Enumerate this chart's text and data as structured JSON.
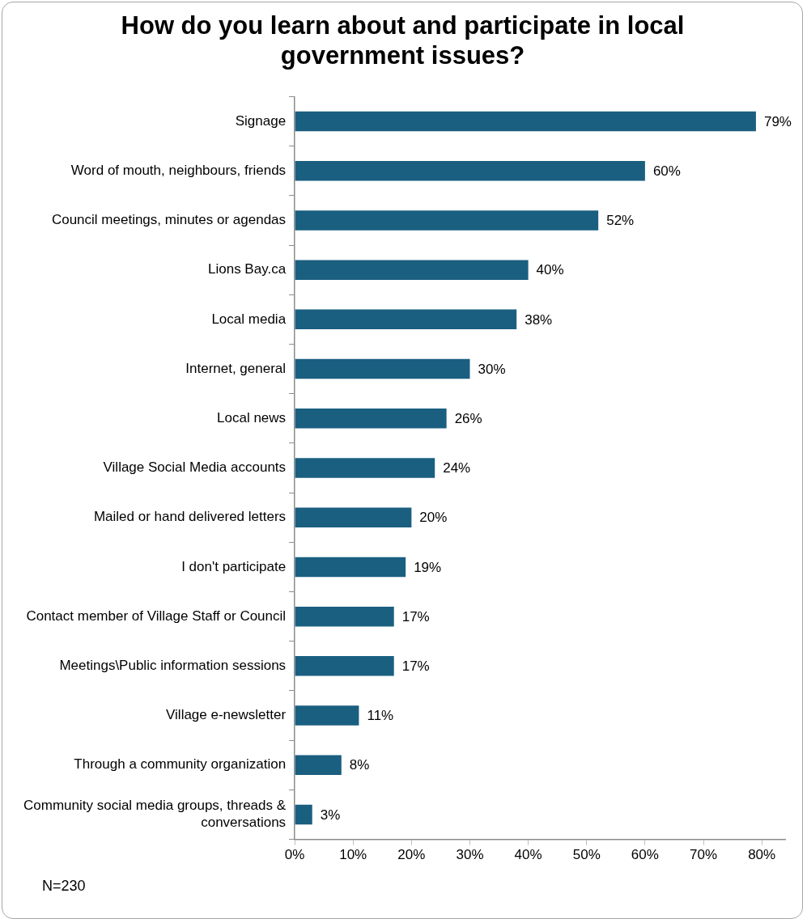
{
  "chart_data": {
    "type": "bar",
    "orientation": "horizontal",
    "title": "How do you learn about and participate in local government issues?",
    "categories": [
      "Signage",
      "Word of mouth, neighbours, friends",
      "Council meetings, minutes or agendas",
      "Lions Bay.ca",
      "Local media",
      "Internet, general",
      "Local news",
      "Village Social Media accounts",
      "Mailed or hand delivered letters",
      "I don't participate",
      "Contact member of Village Staff or Council",
      "Meetings\\Public information sessions",
      "Village e-newsletter",
      "Through a community organization",
      "Community social media groups, threads & conversations"
    ],
    "values": [
      79,
      60,
      52,
      40,
      38,
      30,
      26,
      24,
      20,
      19,
      17,
      17,
      11,
      8,
      3
    ],
    "value_labels": [
      "79%",
      "60%",
      "52%",
      "40%",
      "38%",
      "30%",
      "26%",
      "24%",
      "20%",
      "19%",
      "17%",
      "17%",
      "11%",
      "8%",
      "3%"
    ],
    "color": "#1a5f80",
    "xlim": [
      0,
      84
    ],
    "xticks": [
      {
        "value": 0,
        "label": "0%"
      },
      {
        "value": 10,
        "label": "10%"
      },
      {
        "value": 20,
        "label": "20%"
      },
      {
        "value": 30,
        "label": "30%"
      },
      {
        "value": 40,
        "label": "40%"
      },
      {
        "value": 50,
        "label": "50%"
      },
      {
        "value": 60,
        "label": "60%"
      },
      {
        "value": 70,
        "label": "70%"
      },
      {
        "value": 80,
        "label": "80%"
      }
    ],
    "grid": false,
    "legend": false,
    "annotations": [
      "N=230"
    ]
  }
}
